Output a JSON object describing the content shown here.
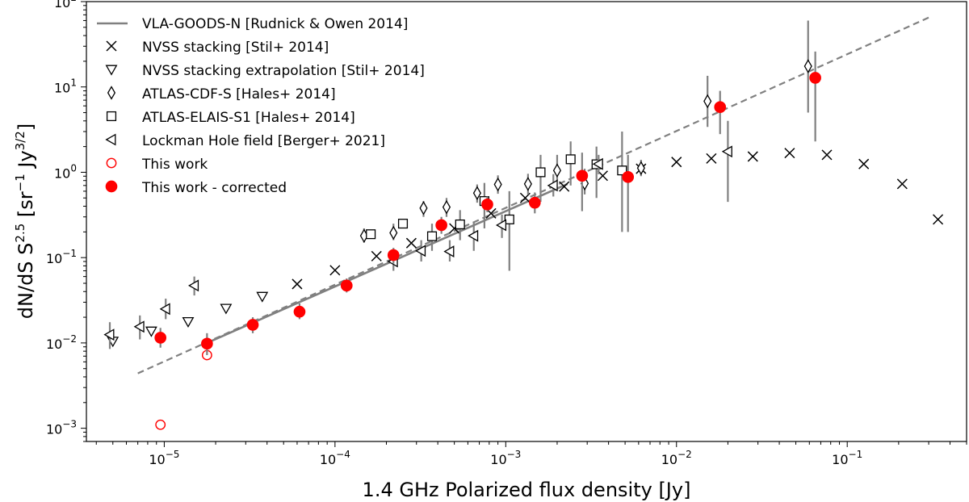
{
  "chart_data": {
    "type": "scatter",
    "xscale": "log",
    "yscale": "log",
    "xlim": [
      3.5e-06,
      0.5
    ],
    "ylim": [
      0.0007,
      100
    ],
    "xlabel": "1.4 GHz Polarized flux density [Jy]",
    "ylabel": {
      "base": "dN/dS S",
      "exp1": "2.5",
      "mid1": " [sr",
      "exp2": "−1",
      "mid2": " Jy",
      "exp3": "3/2",
      "end": "]"
    },
    "x_tick_labels": [
      {
        "value": 1e-05,
        "mantissa": "10",
        "exp": "−5"
      },
      {
        "value": 0.0001,
        "mantissa": "10",
        "exp": "−4"
      },
      {
        "value": 0.001,
        "mantissa": "10",
        "exp": "−3"
      },
      {
        "value": 0.01,
        "mantissa": "10",
        "exp": "−2"
      },
      {
        "value": 0.1,
        "mantissa": "10",
        "exp": "−1"
      }
    ],
    "y_tick_labels": [
      {
        "value": 0.001,
        "mantissa": "10",
        "exp": "−3"
      },
      {
        "value": 0.01,
        "mantissa": "10",
        "exp": "−2"
      },
      {
        "value": 0.1,
        "mantissa": "10",
        "exp": "−1"
      },
      {
        "value": 1,
        "mantissa": "10",
        "exp": "0"
      },
      {
        "value": 10,
        "mantissa": "10",
        "exp": "1"
      },
      {
        "value": 100,
        "mantissa": "10",
        "exp": "2"
      }
    ],
    "grid": false,
    "legend_position": "top-left",
    "series": [
      {
        "name": "VLA-GOODS-N [Rudnick & Owen 2014]",
        "marker": "line",
        "color": "#808080",
        "solid": [
          [
            1.8e-05,
            0.0101
          ],
          [
            0.0023,
            0.73
          ]
        ],
        "dashed": [
          [
            7e-06,
            0.0044
          ],
          [
            0.3,
            65
          ]
        ]
      },
      {
        "name": "NVSS stacking [Stil+ 2014]",
        "marker": "x",
        "color": "#000000",
        "points": [
          [
            0.000175,
            0.104
          ],
          [
            0.0001,
            0.071
          ],
          [
            6e-05,
            0.049
          ],
          [
            0.00028,
            0.148
          ],
          [
            0.0005,
            0.22
          ],
          [
            0.00082,
            0.33
          ],
          [
            0.0013,
            0.5
          ],
          [
            0.0022,
            0.68
          ],
          [
            0.0037,
            0.91
          ],
          [
            0.0062,
            1.1
          ],
          [
            0.01,
            1.32
          ],
          [
            0.016,
            1.45
          ],
          [
            0.028,
            1.53
          ],
          [
            0.046,
            1.68
          ],
          [
            0.076,
            1.6
          ],
          [
            0.125,
            1.25
          ],
          [
            0.21,
            0.73
          ],
          [
            0.34,
            0.28
          ]
        ]
      },
      {
        "name": "NVSS stacking extrapolation [Stil+ 2014]",
        "marker": "triangle-down",
        "color": "#000000",
        "points": [
          [
            5e-06,
            0.0105
          ],
          [
            8.4e-06,
            0.0138
          ],
          [
            1.38e-05,
            0.0178
          ],
          [
            2.3e-05,
            0.0255
          ],
          [
            3.75e-05,
            0.0352
          ]
        ]
      },
      {
        "name": "ATLAS-CDF-S [Hales+ 2014]",
        "marker": "diamond",
        "color": "#000000",
        "points": [
          [
            0.000148,
            0.18
          ],
          [
            0.00022,
            0.195
          ],
          [
            0.00033,
            0.38
          ],
          [
            0.00045,
            0.39
          ],
          [
            0.00068,
            0.57
          ],
          [
            0.0009,
            0.72
          ],
          [
            0.00135,
            0.73
          ],
          [
            0.002,
            1.05
          ],
          [
            0.0029,
            0.74
          ],
          [
            0.0062,
            1.12
          ],
          [
            0.0152,
            6.8
          ],
          [
            0.059,
            17.5
          ]
        ],
        "errors": [
          [
            0.000148,
            0.15,
            0.22
          ],
          [
            0.00022,
            0.16,
            0.25
          ],
          [
            0.00033,
            0.3,
            0.46
          ],
          [
            0.00045,
            0.3,
            0.5
          ],
          [
            0.00068,
            0.44,
            0.72
          ],
          [
            0.0009,
            0.56,
            0.92
          ],
          [
            0.00135,
            0.55,
            0.96
          ],
          [
            0.002,
            0.8,
            1.6
          ],
          [
            0.0029,
            0.55,
            1.1
          ],
          [
            0.0062,
            0.9,
            1.4
          ],
          [
            0.0152,
            3.4,
            13.5
          ],
          [
            0.059,
            5.0,
            60
          ]
        ]
      },
      {
        "name": "ATLAS-ELAIS-S1 [Hales+ 2014]",
        "marker": "square",
        "color": "#000000",
        "points": [
          [
            0.000162,
            0.188
          ],
          [
            0.00025,
            0.25
          ],
          [
            0.00037,
            0.178
          ],
          [
            0.00054,
            0.245
          ],
          [
            0.00075,
            0.46
          ],
          [
            0.00105,
            0.28
          ],
          [
            0.0016,
            1.0
          ],
          [
            0.0024,
            1.42
          ],
          [
            0.0034,
            1.24
          ],
          [
            0.0048,
            1.05
          ]
        ],
        "errors": [
          [
            0.00037,
            0.12,
            0.25
          ],
          [
            0.00054,
            0.16,
            0.36
          ],
          [
            0.00075,
            0.22,
            0.75
          ],
          [
            0.00105,
            0.07,
            0.6
          ],
          [
            0.0016,
            0.45,
            1.6
          ],
          [
            0.0024,
            0.7,
            2.3
          ],
          [
            0.0034,
            0.5,
            2.0
          ],
          [
            0.0048,
            0.2,
            3.0
          ]
        ]
      },
      {
        "name": "Lockman Hole field [Berger+ 2021]",
        "marker": "triangle-left",
        "color": "#000000",
        "points": [
          [
            4.8e-06,
            0.0125
          ],
          [
            7.2e-06,
            0.0155
          ],
          [
            1.02e-05,
            0.025
          ],
          [
            1.5e-05,
            0.047
          ],
          [
            0.00022,
            0.09
          ],
          [
            0.00032,
            0.12
          ],
          [
            0.00047,
            0.118
          ],
          [
            0.00065,
            0.18
          ],
          [
            0.00095,
            0.24
          ],
          [
            0.0019,
            0.7
          ],
          [
            0.0035,
            1.25
          ],
          [
            0.02,
            1.75
          ]
        ],
        "errors": [
          [
            4.8e-06,
            0.0085,
            0.0175
          ],
          [
            7.2e-06,
            0.011,
            0.021
          ],
          [
            1.02e-05,
            0.019,
            0.033
          ],
          [
            1.5e-05,
            0.036,
            0.06
          ],
          [
            0.00022,
            0.07,
            0.12
          ],
          [
            0.00032,
            0.09,
            0.16
          ],
          [
            0.00047,
            0.09,
            0.16
          ],
          [
            0.00065,
            0.12,
            0.26
          ],
          [
            0.00095,
            0.17,
            0.32
          ],
          [
            0.0019,
            0.52,
            0.95
          ],
          [
            0.0035,
            0.95,
            1.6
          ],
          [
            0.02,
            0.45,
            4.0
          ]
        ]
      },
      {
        "name": "This work",
        "marker": "circle-open",
        "color": "#ff0000",
        "points": [
          [
            9.5e-06,
            0.0011
          ],
          [
            1.78e-05,
            0.0072
          ]
        ]
      },
      {
        "name": "This work - corrected",
        "marker": "circle-filled",
        "color": "#ff0000",
        "points": [
          [
            9.5e-06,
            0.0115
          ],
          [
            1.78e-05,
            0.0098
          ],
          [
            3.3e-05,
            0.0163
          ],
          [
            6.2e-05,
            0.0232
          ],
          [
            0.000117,
            0.047
          ],
          [
            0.00022,
            0.107
          ],
          [
            0.00042,
            0.24
          ],
          [
            0.00078,
            0.42
          ],
          [
            0.00148,
            0.44
          ],
          [
            0.0028,
            0.91
          ],
          [
            0.0052,
            0.88
          ],
          [
            0.018,
            5.8
          ],
          [
            0.065,
            12.8
          ]
        ],
        "errors": [
          [
            9.5e-06,
            0.0088,
            0.015
          ],
          [
            1.78e-05,
            0.0072,
            0.013
          ],
          [
            3.3e-05,
            0.013,
            0.02
          ],
          [
            6.2e-05,
            0.019,
            0.029
          ],
          [
            0.000117,
            0.039,
            0.057
          ],
          [
            0.00022,
            0.085,
            0.13
          ],
          [
            0.00042,
            0.19,
            0.3
          ],
          [
            0.00078,
            0.34,
            0.52
          ],
          [
            0.00148,
            0.33,
            0.58
          ],
          [
            0.0028,
            0.35,
            1.7
          ],
          [
            0.0052,
            0.2,
            1.6
          ],
          [
            0.018,
            2.8,
            9.0
          ],
          [
            0.065,
            2.3,
            26
          ]
        ]
      }
    ]
  }
}
